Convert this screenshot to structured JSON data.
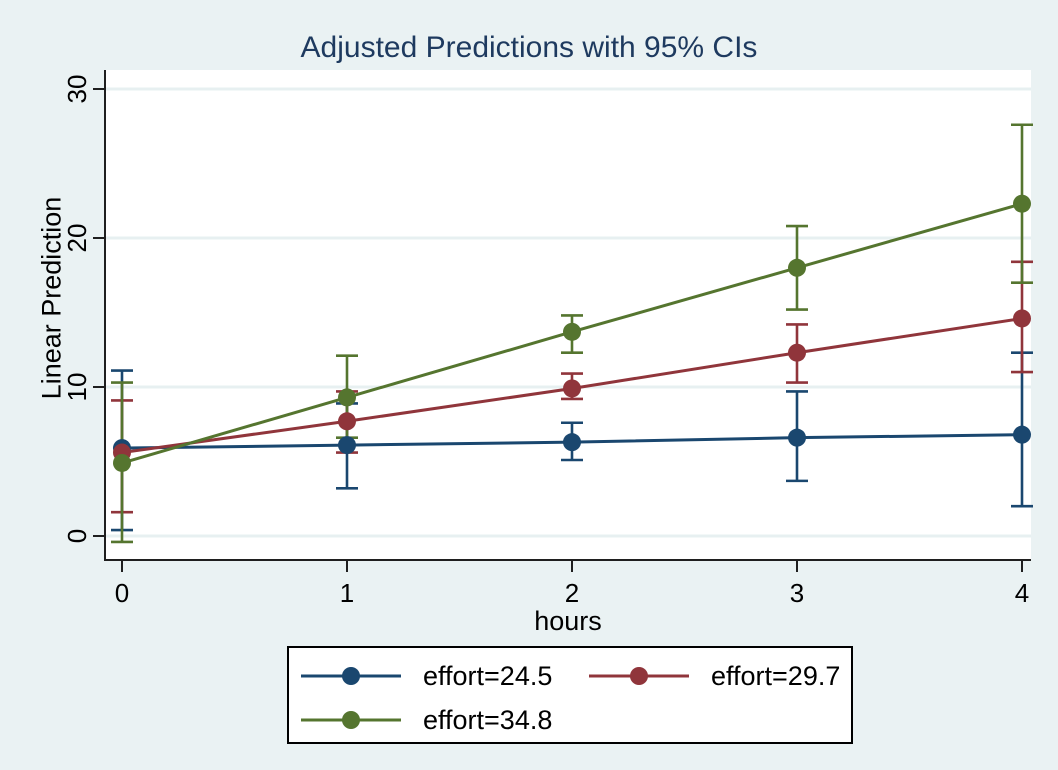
{
  "title": "Adjusted Predictions with 95% CIs",
  "colors": {
    "background": "#eaf2f3",
    "plot_background": "#ffffff",
    "gridline": "#e7f0f1",
    "axis": "#1f1f1f",
    "title_text": "#1e3a5f",
    "series_navy": "#1a476f",
    "series_maroon": "#90353b",
    "series_olive": "#55752f"
  },
  "chart_data": {
    "type": "line",
    "title": "Adjusted Predictions with 95% CIs",
    "xlabel": "hours",
    "ylabel": "Linear Prediction",
    "x": [
      0,
      1,
      2,
      3,
      4
    ],
    "x_tick_labels": [
      "0",
      "1",
      "2",
      "3",
      "4"
    ],
    "y_ticks": [
      0,
      10,
      20,
      30
    ],
    "y_tick_labels": [
      "0",
      "10",
      "20",
      "30"
    ],
    "xlim": [
      -0.08,
      4.05
    ],
    "ylim": [
      0,
      30
    ],
    "grid": true,
    "grid_axis": "y",
    "error_bars": "95% confidence intervals with caps",
    "legend_position": "bottom",
    "series": [
      {
        "name": "effort=24.5",
        "color": "#1a476f",
        "values": [
          5.9,
          6.1,
          6.3,
          6.6,
          6.8
        ],
        "ci_low": [
          0.4,
          3.2,
          5.1,
          3.7,
          2.0
        ],
        "ci_high": [
          11.1,
          8.9,
          7.6,
          9.7,
          12.3
        ]
      },
      {
        "name": "effort=29.7",
        "color": "#90353b",
        "values": [
          5.6,
          7.7,
          9.9,
          12.3,
          14.6
        ],
        "ci_low": [
          1.6,
          5.6,
          9.2,
          10.3,
          11.0
        ],
        "ci_high": [
          9.1,
          9.7,
          10.9,
          14.2,
          18.4
        ]
      },
      {
        "name": "effort=34.8",
        "color": "#55752f",
        "values": [
          4.9,
          9.3,
          13.7,
          18.0,
          22.3
        ],
        "ci_low": [
          -0.4,
          6.6,
          12.3,
          15.2,
          17.0
        ],
        "ci_high": [
          10.3,
          12.1,
          14.8,
          20.8,
          27.6
        ]
      }
    ]
  }
}
